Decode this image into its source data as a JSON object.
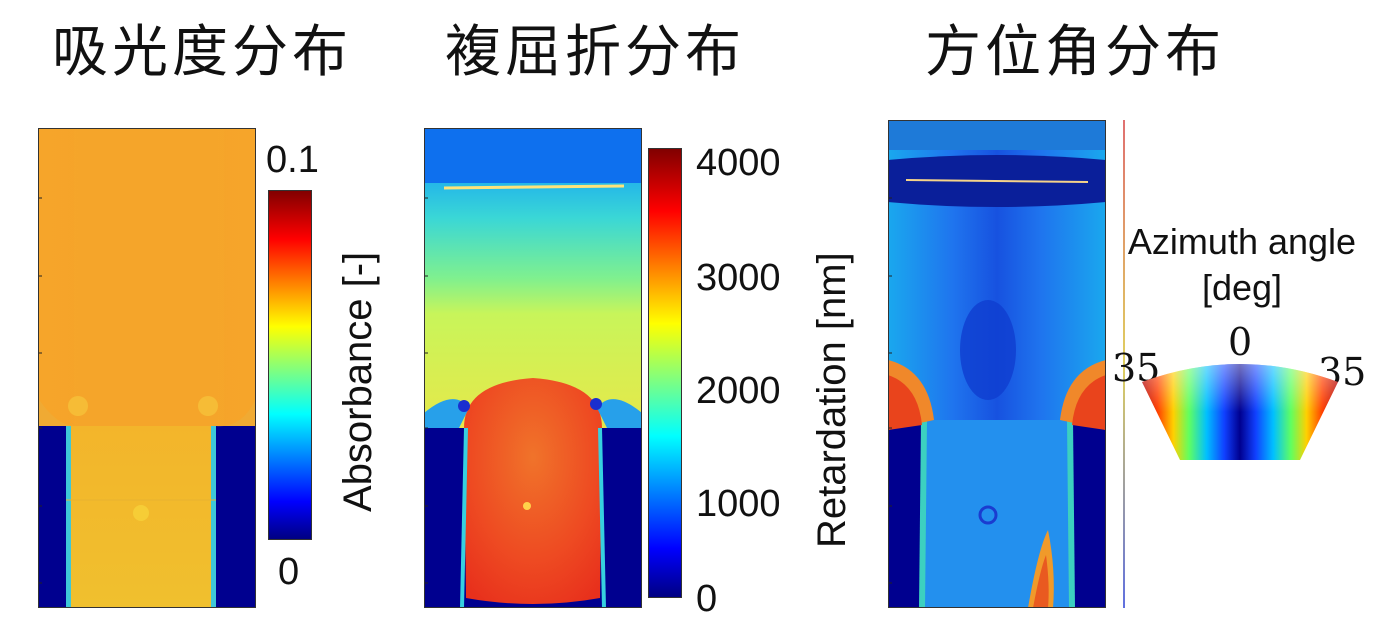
{
  "titles": {
    "absorbance": "吸光度分布",
    "birefringence": "複屈折分布",
    "azimuth": "方位角分布"
  },
  "absorbance_panel": {
    "colorbar_label": "Absorbance [-]",
    "max_tick": "0.1",
    "min_tick": "0"
  },
  "retardation_panel": {
    "colorbar_label": "Retardation [nm]",
    "ticks": [
      "4000",
      "3000",
      "2000",
      "1000",
      "0"
    ]
  },
  "azimuth_panel": {
    "legend_title_line1": "Azimuth angle",
    "legend_title_line2": "[deg]",
    "center_value": "0",
    "left_value": "35",
    "right_value": "35"
  },
  "colors": {
    "jet_dark_blue": "#00007f",
    "jet_blue": "#0000ff",
    "jet_cyan": "#00ffff",
    "jet_yellow": "#ffff00",
    "jet_red": "#ff0000",
    "jet_dark_red": "#7f0000",
    "absorbance_orange": "#f5a623"
  }
}
